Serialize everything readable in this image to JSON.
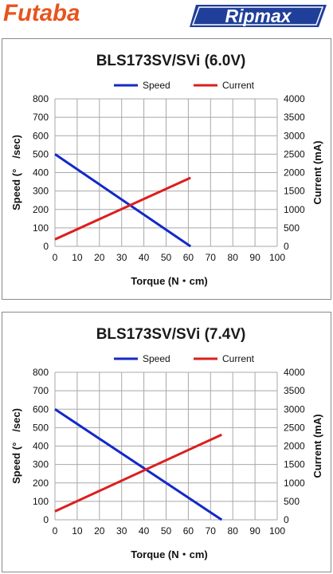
{
  "header": {
    "left_brand": "Futaba",
    "right_brand": "Ripmax"
  },
  "colors": {
    "futaba_orange": "#e8541c",
    "ripmax_blue": "#1f3f9a",
    "speed": "#1428c8",
    "current": "#dc1e1e",
    "grid": "#a8a8a8"
  },
  "chart_data": [
    {
      "type": "line",
      "title": "BLS173SV/SVi (6.0V)",
      "xlabel": "Torque (N・cm)",
      "ylabel": "Speed (°　/sec)",
      "y2label": "Current (mA)",
      "xlim": [
        0,
        100
      ],
      "xticks": [
        "0",
        "10",
        "20",
        "30",
        "40",
        "50",
        "60",
        "70",
        "80",
        "90",
        "100"
      ],
      "ylim": [
        0,
        800
      ],
      "yticks": [
        "0",
        "100",
        "200",
        "300",
        "400",
        "500",
        "600",
        "700",
        "800"
      ],
      "y2lim": [
        0,
        4000
      ],
      "y2ticks": [
        "0",
        "500",
        "1000",
        "1500",
        "2000",
        "2500",
        "3000",
        "3500",
        "4000"
      ],
      "grid": true,
      "legend_position": "top-center",
      "series": [
        {
          "name": "Speed",
          "axis": "left",
          "color": "#1428c8",
          "x": [
            0,
            61
          ],
          "y": [
            500,
            0
          ]
        },
        {
          "name": "Current",
          "axis": "right",
          "color": "#dc1e1e",
          "x": [
            0,
            61
          ],
          "y": [
            190,
            1860
          ]
        }
      ]
    },
    {
      "type": "line",
      "title": "BLS173SV/SVi (7.4V)",
      "xlabel": "Torque (N・cm)",
      "ylabel": "Speed (°　/sec)",
      "y2label": "Current (mA)",
      "xlim": [
        0,
        100
      ],
      "xticks": [
        "0",
        "10",
        "20",
        "30",
        "40",
        "50",
        "60",
        "70",
        "80",
        "90",
        "100"
      ],
      "ylim": [
        0,
        800
      ],
      "yticks": [
        "0",
        "100",
        "200",
        "300",
        "400",
        "500",
        "600",
        "700",
        "800"
      ],
      "y2lim": [
        0,
        4000
      ],
      "y2ticks": [
        "0",
        "500",
        "1000",
        "1500",
        "2000",
        "2500",
        "3000",
        "3500",
        "4000"
      ],
      "grid": true,
      "legend_position": "top-center",
      "series": [
        {
          "name": "Speed",
          "axis": "left",
          "color": "#1428c8",
          "x": [
            0,
            75
          ],
          "y": [
            600,
            0
          ]
        },
        {
          "name": "Current",
          "axis": "right",
          "color": "#dc1e1e",
          "x": [
            0,
            75
          ],
          "y": [
            230,
            2310
          ]
        }
      ]
    }
  ]
}
